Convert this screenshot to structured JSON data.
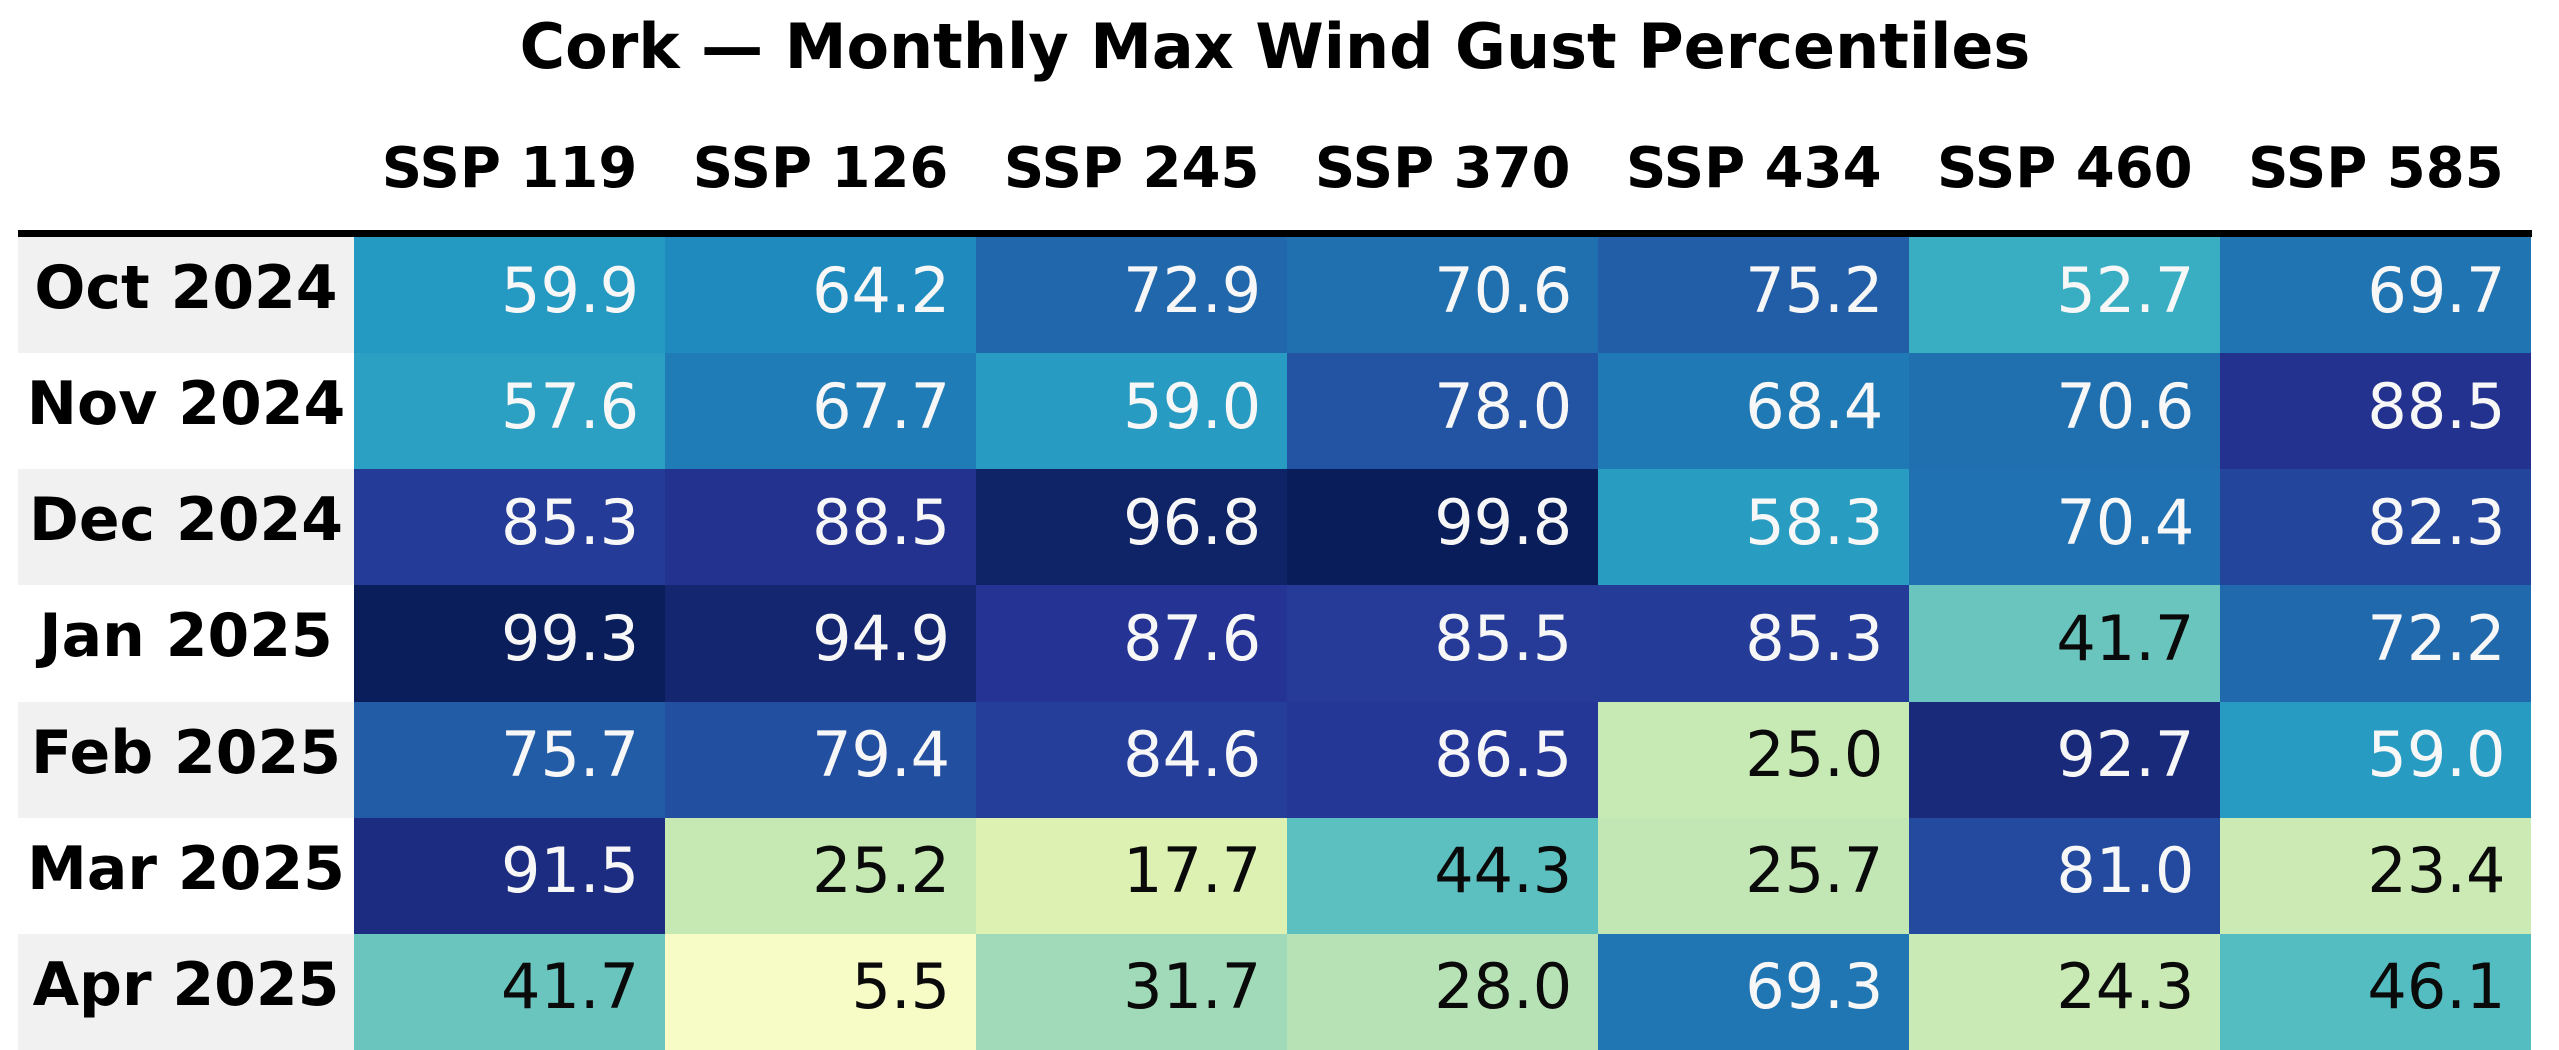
{
  "figure": {
    "background": "#ffffff"
  },
  "chart_data": {
    "type": "heatmap",
    "title": "Cork — Monthly Max Wind Gust Percentiles",
    "columns": [
      "SSP 119",
      "SSP 126",
      "SSP 245",
      "SSP 370",
      "SSP 434",
      "SSP 460",
      "SSP 585"
    ],
    "rows": [
      "Oct 2024",
      "Nov 2024",
      "Dec 2024",
      "Jan 2025",
      "Feb 2025",
      "Mar 2025",
      "Apr 2025"
    ],
    "values": [
      [
        59.9,
        64.2,
        72.9,
        70.6,
        75.2,
        52.7,
        69.7
      ],
      [
        57.6,
        67.7,
        59.0,
        78.0,
        68.4,
        70.6,
        88.5
      ],
      [
        85.3,
        88.5,
        96.8,
        99.8,
        58.3,
        70.4,
        82.3
      ],
      [
        99.3,
        94.9,
        87.6,
        85.5,
        85.3,
        41.7,
        72.2
      ],
      [
        75.7,
        79.4,
        84.6,
        86.5,
        25.0,
        92.7,
        59.0
      ],
      [
        91.5,
        25.2,
        17.7,
        44.3,
        25.7,
        81.0,
        23.4
      ],
      [
        41.7,
        5.5,
        31.7,
        28.0,
        69.3,
        24.3,
        46.1
      ]
    ],
    "value_decimals": 1,
    "value_range": [
      0,
      100
    ],
    "colormap": "YlGnBu",
    "colormap_stops": [
      "#ffffd9",
      "#edf8b1",
      "#c7e9b4",
      "#7fcdbb",
      "#41b6c4",
      "#1d91c0",
      "#225ea8",
      "#253494",
      "#081d58"
    ],
    "text_color_threshold": 50,
    "legend": "none",
    "grid": "off"
  },
  "styles": {
    "title_color": "#000000",
    "header_text_color": "#000000",
    "rule_color": "#000000",
    "row_label_bg_odd": "#f1f1f1",
    "row_label_bg_even": "#ffffff",
    "row_label_text": "#000000",
    "cell_text_light": "#f7f7f7",
    "cell_text_dark": "#0a0a0a"
  }
}
